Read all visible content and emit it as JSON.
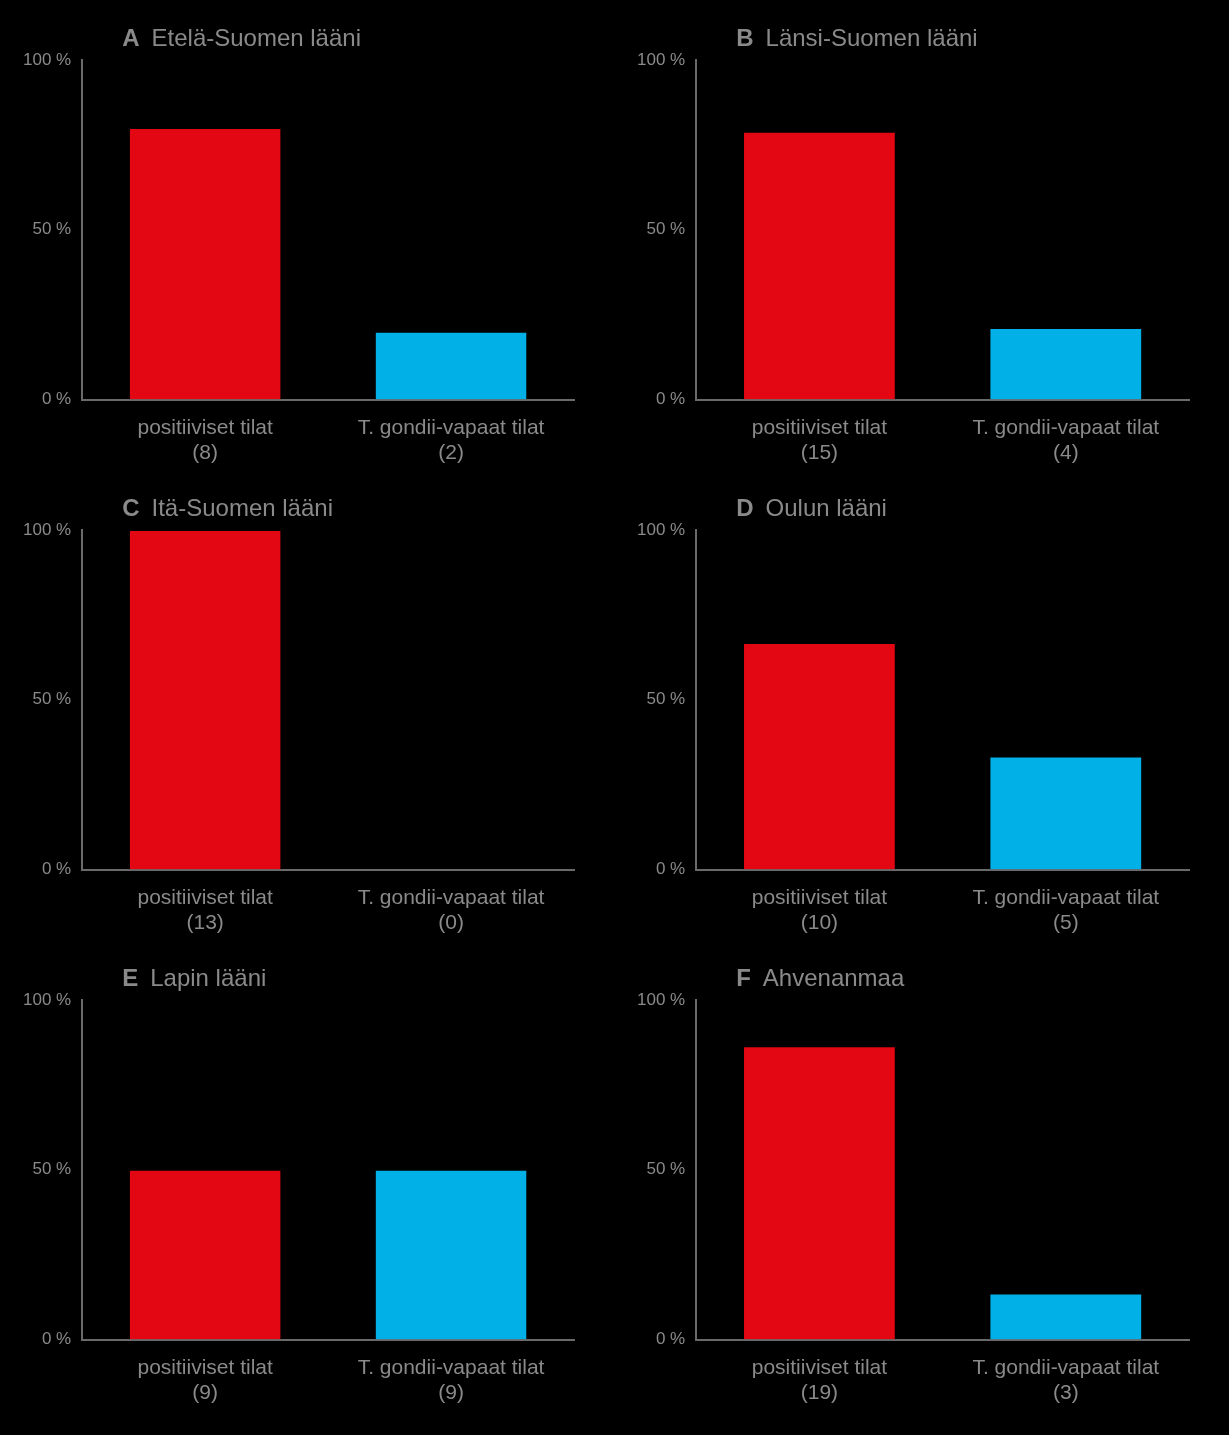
{
  "chart_data": [
    {
      "type": "bar",
      "panel_label": "A",
      "title": "Etelä-Suomen lääni",
      "categories": [
        [
          "positiiviset tilat",
          "(8)"
        ],
        [
          "T. gondii-vapaat tilat",
          "(2)"
        ]
      ],
      "values": [
        80,
        20
      ],
      "colors": [
        "#e30613",
        "#00b0e6"
      ],
      "ylim": [
        0,
        100
      ],
      "yticks": [
        {
          "value": 0,
          "label": "0 %"
        },
        {
          "value": 50,
          "label": "50 %"
        },
        {
          "value": 100,
          "label": "100 %"
        }
      ],
      "grid": false
    },
    {
      "type": "bar",
      "panel_label": "B",
      "title": "Länsi-Suomen lääni",
      "categories": [
        [
          "positiiviset tilat",
          "(15)"
        ],
        [
          "T. gondii-vapaat tilat",
          "(4)"
        ]
      ],
      "values": [
        78.9,
        21.1
      ],
      "colors": [
        "#e30613",
        "#00b0e6"
      ],
      "ylim": [
        0,
        100
      ],
      "yticks": [
        {
          "value": 0,
          "label": "0 %"
        },
        {
          "value": 50,
          "label": "50 %"
        },
        {
          "value": 100,
          "label": "100 %"
        }
      ],
      "grid": false
    },
    {
      "type": "bar",
      "panel_label": "C",
      "title": "Itä-Suomen lääni",
      "categories": [
        [
          "positiiviset tilat",
          "(13)"
        ],
        [
          "T. gondii-vapaat tilat",
          "(0)"
        ]
      ],
      "values": [
        100,
        0
      ],
      "colors": [
        "#e30613",
        "#00b0e6"
      ],
      "ylim": [
        0,
        100
      ],
      "yticks": [
        {
          "value": 0,
          "label": "0 %"
        },
        {
          "value": 50,
          "label": "50 %"
        },
        {
          "value": 100,
          "label": "100 %"
        }
      ],
      "grid": false
    },
    {
      "type": "bar",
      "panel_label": "D",
      "title": "Oulun lääni",
      "categories": [
        [
          "positiiviset tilat",
          "(10)"
        ],
        [
          "T. gondii-vapaat tilat",
          "(5)"
        ]
      ],
      "values": [
        66.7,
        33.3
      ],
      "colors": [
        "#e30613",
        "#00b0e6"
      ],
      "ylim": [
        0,
        100
      ],
      "yticks": [
        {
          "value": 0,
          "label": "0 %"
        },
        {
          "value": 50,
          "label": "50 %"
        },
        {
          "value": 100,
          "label": "100 %"
        }
      ],
      "grid": false
    },
    {
      "type": "bar",
      "panel_label": "E",
      "title": "Lapin lääni",
      "categories": [
        [
          "positiiviset tilat",
          "(9)"
        ],
        [
          "T. gondii-vapaat tilat",
          "(9)"
        ]
      ],
      "values": [
        50,
        50
      ],
      "colors": [
        "#e30613",
        "#00b0e6"
      ],
      "ylim": [
        0,
        100
      ],
      "yticks": [
        {
          "value": 0,
          "label": "0 %"
        },
        {
          "value": 50,
          "label": "50 %"
        },
        {
          "value": 100,
          "label": "100 %"
        }
      ],
      "grid": false
    },
    {
      "type": "bar",
      "panel_label": "F",
      "title": "Ahvenanmaa",
      "categories": [
        [
          "positiiviset tilat",
          "(19)"
        ],
        [
          "T. gondii-vapaat tilat",
          "(3)"
        ]
      ],
      "values": [
        86.4,
        13.6
      ],
      "colors": [
        "#e30613",
        "#00b0e6"
      ],
      "ylim": [
        0,
        100
      ],
      "yticks": [
        {
          "value": 0,
          "label": "0 %"
        },
        {
          "value": 50,
          "label": "50 %"
        },
        {
          "value": 100,
          "label": "100 %"
        }
      ],
      "grid": false
    }
  ]
}
